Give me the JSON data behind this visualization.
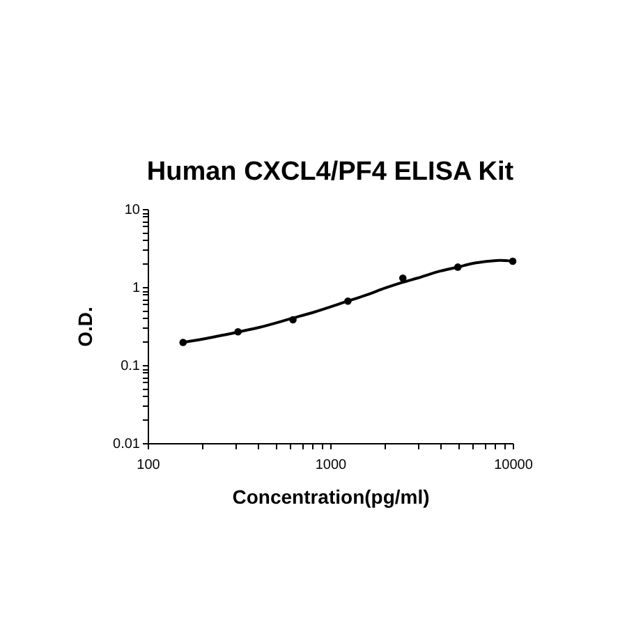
{
  "chart_data": {
    "type": "scatter",
    "title": "Human CXCL4/PF4  ELISA Kit",
    "xlabel": "Concentration(pg/ml)",
    "ylabel": "O.D.",
    "log": "xy",
    "grid": false,
    "marker": "circle",
    "line_style": "solid",
    "xlim": [
      100,
      10000
    ],
    "ylim": [
      0.01,
      10
    ],
    "xticks": [
      100,
      {
        "value": 200,
        "label": null
      },
      {
        "value": 300,
        "label": null
      },
      {
        "value": 400,
        "label": null
      },
      {
        "value": 500,
        "label": null
      },
      {
        "value": 600,
        "label": null
      },
      {
        "value": 700,
        "label": null
      },
      {
        "value": 800,
        "label": null
      },
      {
        "value": 900,
        "label": null
      },
      1000,
      {
        "value": 2000,
        "label": null
      },
      {
        "value": 3000,
        "label": null
      },
      {
        "value": 4000,
        "label": null
      },
      {
        "value": 5000,
        "label": null
      },
      {
        "value": 6000,
        "label": null
      },
      {
        "value": 7000,
        "label": null
      },
      {
        "value": 8000,
        "label": null
      },
      {
        "value": 9000,
        "label": null
      },
      10000
    ],
    "yticks": [
      0.01,
      {
        "value": 0.02,
        "label": null
      },
      {
        "value": 0.03,
        "label": null
      },
      {
        "value": 0.04,
        "label": null
      },
      {
        "value": 0.05,
        "label": null
      },
      {
        "value": 0.06,
        "label": null
      },
      {
        "value": 0.07,
        "label": null
      },
      {
        "value": 0.08,
        "label": null
      },
      {
        "value": 0.09,
        "label": null
      },
      0.1,
      {
        "value": 0.2,
        "label": null
      },
      {
        "value": 0.3,
        "label": null
      },
      {
        "value": 0.4,
        "label": null
      },
      {
        "value": 0.5,
        "label": null
      },
      {
        "value": 0.6,
        "label": null
      },
      {
        "value": 0.7,
        "label": null
      },
      {
        "value": 0.8,
        "label": null
      },
      {
        "value": 0.9,
        "label": null
      },
      1,
      {
        "value": 2,
        "label": null
      },
      {
        "value": 3,
        "label": null
      },
      {
        "value": 4,
        "label": null
      },
      {
        "value": 5,
        "label": null
      },
      {
        "value": 6,
        "label": null
      },
      {
        "value": 7,
        "label": null
      },
      {
        "value": 8,
        "label": null
      },
      {
        "value": 9,
        "label": null
      },
      10
    ],
    "series": [
      {
        "type": "line",
        "marker": "none",
        "color": "#000000",
        "x": [
          156.25,
          200,
          312.5,
          400,
          625,
          800,
          1250,
          1600,
          2000,
          2500,
          3000,
          4000,
          5000,
          6000,
          7500,
          8500,
          10000
        ],
        "values": [
          0.195,
          0.215,
          0.265,
          0.3,
          0.4,
          0.47,
          0.66,
          0.8,
          0.97,
          1.15,
          1.3,
          1.6,
          1.8,
          2.0,
          2.15,
          2.2,
          2.15
        ]
      },
      {
        "color": "#000000",
        "x": [
          156.25,
          312.5,
          625,
          1250,
          2500,
          5000,
          10000
        ],
        "values": [
          0.195,
          0.267,
          0.38,
          0.66,
          1.3,
          1.8,
          2.14
        ]
      }
    ]
  }
}
